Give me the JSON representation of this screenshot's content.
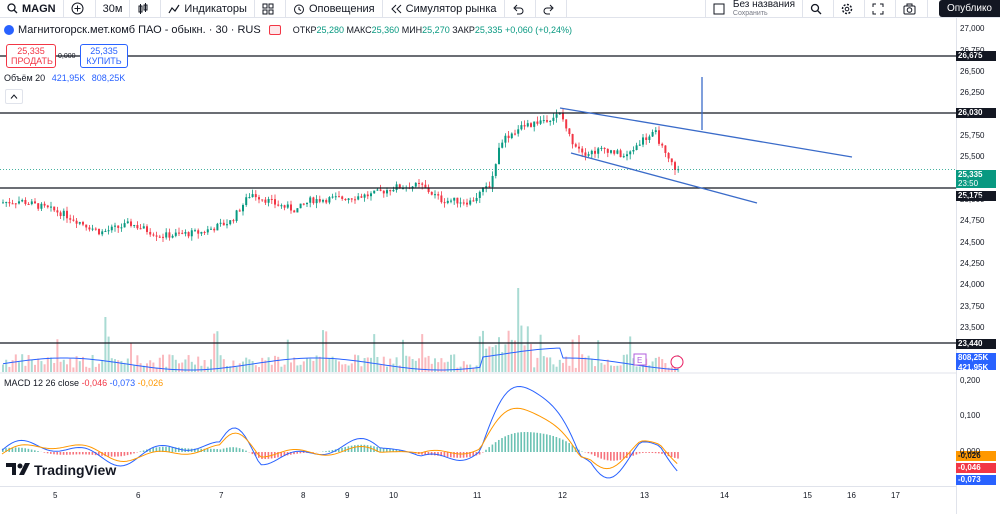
{
  "toolbar": {
    "symbol": "MAGN",
    "interval": "30м",
    "indicators": "Индикаторы",
    "alerts": "Оповещения",
    "replay": "Симулятор рынка",
    "save_title": "Без названия",
    "save_sub": "Сохранить",
    "publish": "Опублико"
  },
  "legend": {
    "name": "Магнитогорск.мет.комб ПАО - обыкн. · 30 · RUS",
    "open_k": "ОТКР",
    "open_v": "25,280",
    "high_k": "МАКС",
    "high_v": "25,360",
    "low_k": "МИН",
    "low_v": "25,270",
    "close_k": "ЗАКР",
    "close_v": "25,335",
    "change": "+0,060 (+0,24%)"
  },
  "trade": {
    "sell_price": "25,335",
    "sell_label": "ПРОДАТЬ",
    "spread": "0,000",
    "buy_price": "25,335",
    "buy_label": "КУПИТЬ"
  },
  "volume": {
    "label": "Объём 20",
    "v1": "421,95K",
    "v2": "808,25K"
  },
  "macd": {
    "label": "MACD 12 26 close",
    "hist": "-0,046",
    "macd": "-0,073",
    "signal": "-0,026"
  },
  "logo": "TradingView",
  "price_axis": {
    "ticks": [
      "27,000",
      "26,750",
      "26,500",
      "26,250",
      "25,750",
      "25,500",
      "25,000",
      "24,750",
      "24,500",
      "24,250",
      "24,000",
      "23,750",
      "23,500"
    ],
    "labels": {
      "l1": "26,675",
      "l2": "26,030",
      "l3": "25,335",
      "l3_timer": "23:50",
      "l4": "25,175",
      "l5": "23,440",
      "l6": "808,25K",
      "l7": "421,95K"
    },
    "macd_ticks": [
      "0,200",
      "0,100",
      "0,000"
    ],
    "macd_labels": {
      "a": "-0,026",
      "b": "-0,046",
      "c": "-0,073"
    }
  },
  "time_axis": [
    "5",
    "6",
    "7",
    "8",
    "9",
    "10",
    "11",
    "12",
    "13",
    "14",
    "15",
    "16",
    "17"
  ],
  "colors": {
    "up": "#089981",
    "down": "#f23645",
    "accent": "#2962ff",
    "signal": "#ff9800"
  },
  "chart_data": {
    "type": "candlestick",
    "horizontal_levels": [
      26.675,
      26.03,
      25.175,
      23.44
    ],
    "last_price": 25.335,
    "trendlines": "descending channel drawn from near 26.05 on day 12 sloping down past day 14",
    "close_path": [
      {
        "x": "5",
        "close": 24.99
      },
      {
        "x": "6",
        "close": 24.65
      },
      {
        "x": "7",
        "close": 24.97
      },
      {
        "x": "8",
        "close": 25.02
      },
      {
        "x": "9",
        "close": 25.05
      },
      {
        "x": "10",
        "close": 25.17
      },
      {
        "x": "11",
        "close": 25.0
      },
      {
        "x": "12",
        "close": 26.0
      },
      {
        "x": "13",
        "close": 25.6
      },
      {
        "x": "13.5",
        "close": 25.335
      }
    ]
  }
}
